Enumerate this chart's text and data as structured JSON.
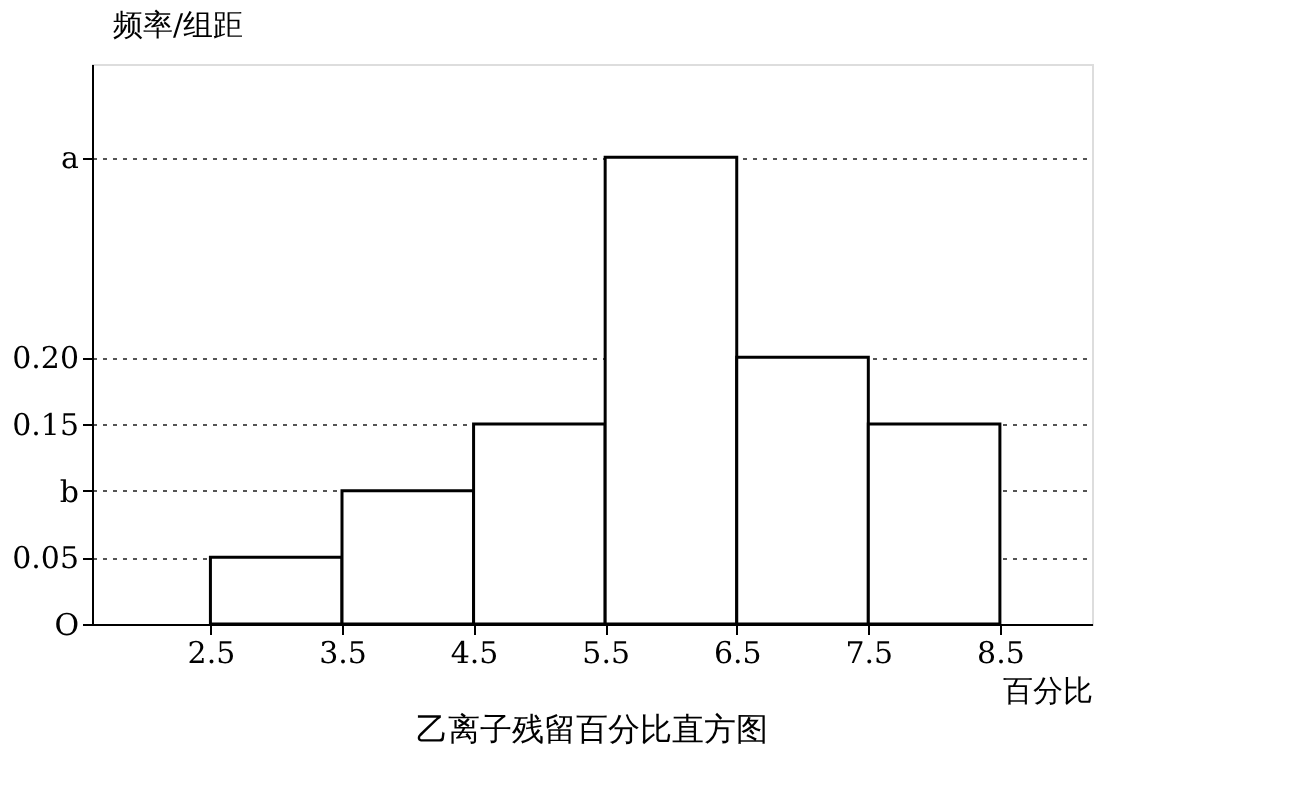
{
  "chart_data": {
    "type": "histogram",
    "title": "乙离子残留百分比直方图",
    "xlabel": "百分比",
    "ylabel": "频率/组距",
    "bins": [
      2.5,
      3.5,
      4.5,
      5.5,
      6.5,
      7.5,
      8.5
    ],
    "values": [
      0.05,
      0.1,
      0.15,
      0.35,
      0.2,
      0.15
    ],
    "color": "#ffffff",
    "xlim": [
      1.6,
      9.2
    ],
    "xticks": [
      2.5,
      3.5,
      4.5,
      5.5,
      6.5,
      7.5,
      8.5
    ],
    "ylim": [
      0,
      0.42
    ],
    "yticks": [
      {
        "value": 0,
        "label": "O"
      },
      0.05,
      {
        "value": 0.1,
        "label": "b"
      },
      0.15,
      {
        "value": 0.2,
        "label": "0.20"
      },
      {
        "value": 0.35,
        "label": "a"
      }
    ],
    "grid": "y"
  }
}
